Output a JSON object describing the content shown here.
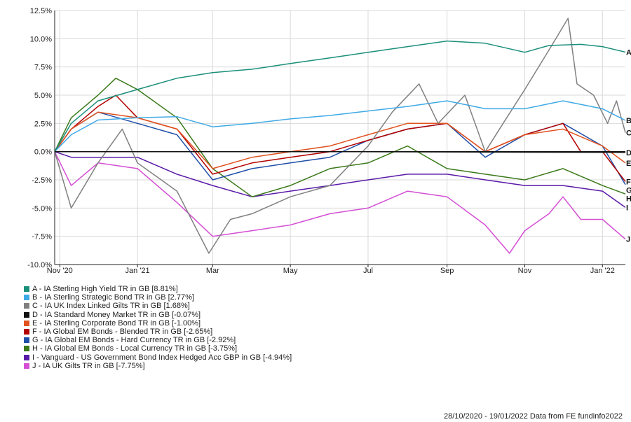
{
  "chart_data": {
    "type": "line",
    "x_range": [
      "2020-10-28",
      "2022-01-19"
    ],
    "ylim": [
      -10,
      12.5
    ],
    "y_ticks": [
      -10,
      -7.5,
      -5,
      -2.5,
      0,
      2.5,
      5,
      7.5,
      10,
      12.5
    ],
    "y_tick_labels": [
      "-10.0%",
      "-7.5%",
      "-5.0%",
      "-2.5%",
      "0.0%",
      "2.5%",
      "5.0%",
      "7.5%",
      "10.0%",
      "12.5%"
    ],
    "x_ticks": [
      "2020-11-01",
      "2021-01-01",
      "2021-03-01",
      "2021-05-01",
      "2021-07-01",
      "2021-09-01",
      "2021-11-01",
      "2022-01-01"
    ],
    "x_tick_labels": [
      "Nov '20",
      "Jan '21",
      "Mar",
      "May",
      "Jul",
      "Sep",
      "Nov",
      "Jan '22"
    ],
    "grid": true,
    "legend_position": "bottom-left",
    "footer": "28/10/2020 - 19/01/2022 Data from FE fundinfo2022",
    "series": [
      {
        "key": "A",
        "name": "A - IA Sterling High Yield TR in GB [8.81%]",
        "color": "#1a8f7a",
        "points": [
          [
            "2020-10-28",
            0
          ],
          [
            "2020-11-10",
            2.5
          ],
          [
            "2020-12-01",
            4.5
          ],
          [
            "2021-01-01",
            5.5
          ],
          [
            "2021-02-01",
            6.5
          ],
          [
            "2021-03-01",
            7.0
          ],
          [
            "2021-04-01",
            7.3
          ],
          [
            "2021-05-01",
            7.8
          ],
          [
            "2021-06-01",
            8.3
          ],
          [
            "2021-07-01",
            8.8
          ],
          [
            "2021-08-01",
            9.3
          ],
          [
            "2021-09-01",
            9.8
          ],
          [
            "2021-10-01",
            9.6
          ],
          [
            "2021-11-01",
            8.8
          ],
          [
            "2021-11-20",
            9.4
          ],
          [
            "2021-12-15",
            9.5
          ],
          [
            "2022-01-01",
            9.3
          ],
          [
            "2022-01-19",
            8.81
          ]
        ]
      },
      {
        "key": "B",
        "name": "B - IA Sterling Strategic Bond TR in GB [2.77%]",
        "color": "#3fa9e6",
        "points": [
          [
            "2020-10-28",
            0
          ],
          [
            "2020-11-10",
            1.5
          ],
          [
            "2020-12-01",
            2.8
          ],
          [
            "2021-01-01",
            3.0
          ],
          [
            "2021-02-01",
            3.1
          ],
          [
            "2021-03-01",
            2.2
          ],
          [
            "2021-04-01",
            2.5
          ],
          [
            "2021-05-01",
            2.9
          ],
          [
            "2021-06-01",
            3.2
          ],
          [
            "2021-07-01",
            3.6
          ],
          [
            "2021-08-01",
            4.0
          ],
          [
            "2021-09-01",
            4.5
          ],
          [
            "2021-10-01",
            3.8
          ],
          [
            "2021-11-01",
            3.8
          ],
          [
            "2021-12-01",
            4.5
          ],
          [
            "2022-01-01",
            3.8
          ],
          [
            "2022-01-19",
            2.77
          ]
        ]
      },
      {
        "key": "C",
        "name": "C - IA UK Index Linked Gilts TR in GB [1.68%]",
        "color": "#808080",
        "points": [
          [
            "2020-10-28",
            0
          ],
          [
            "2020-11-10",
            -5
          ],
          [
            "2020-12-01",
            -1
          ],
          [
            "2020-12-20",
            2
          ],
          [
            "2021-01-01",
            -1
          ],
          [
            "2021-02-01",
            -3.5
          ],
          [
            "2021-02-26",
            -9
          ],
          [
            "2021-03-15",
            -6
          ],
          [
            "2021-04-01",
            -5.5
          ],
          [
            "2021-05-01",
            -4
          ],
          [
            "2021-06-01",
            -3
          ],
          [
            "2021-07-01",
            0.5
          ],
          [
            "2021-07-20",
            3.5
          ],
          [
            "2021-08-10",
            6
          ],
          [
            "2021-08-25",
            2.5
          ],
          [
            "2021-09-15",
            5
          ],
          [
            "2021-10-01",
            0
          ],
          [
            "2021-10-15",
            2.5
          ],
          [
            "2021-11-01",
            5.5
          ],
          [
            "2021-11-20",
            9
          ],
          [
            "2021-12-05",
            11.8
          ],
          [
            "2021-12-12",
            6
          ],
          [
            "2021-12-25",
            5
          ],
          [
            "2022-01-05",
            2.5
          ],
          [
            "2022-01-12",
            4.5
          ],
          [
            "2022-01-19",
            1.68
          ]
        ]
      },
      {
        "key": "D",
        "name": "D - IA Standard Money Market TR in GB [-0.07%]",
        "color": "#111111",
        "points": [
          [
            "2020-10-28",
            0
          ],
          [
            "2021-06-01",
            0
          ],
          [
            "2022-01-19",
            -0.07
          ]
        ]
      },
      {
        "key": "E",
        "name": "E - IA Sterling Corporate Bond TR in GB [-1.00%]",
        "color": "#e0531f",
        "points": [
          [
            "2020-10-28",
            0
          ],
          [
            "2020-11-10",
            2
          ],
          [
            "2020-12-01",
            3.5
          ],
          [
            "2021-01-01",
            3.0
          ],
          [
            "2021-02-01",
            2.0
          ],
          [
            "2021-03-01",
            -1.5
          ],
          [
            "2021-04-01",
            -0.5
          ],
          [
            "2021-05-01",
            0
          ],
          [
            "2021-06-01",
            0.5
          ],
          [
            "2021-07-01",
            1.5
          ],
          [
            "2021-08-01",
            2.5
          ],
          [
            "2021-09-01",
            2.5
          ],
          [
            "2021-10-01",
            0
          ],
          [
            "2021-11-01",
            1.5
          ],
          [
            "2021-12-01",
            2.0
          ],
          [
            "2022-01-01",
            0.5
          ],
          [
            "2022-01-19",
            -1.0
          ]
        ]
      },
      {
        "key": "F",
        "name": "F - IA Global EM Bonds - Blended TR in GB [-2.65%]",
        "color": "#b30000",
        "points": [
          [
            "2020-10-28",
            0
          ],
          [
            "2020-11-10",
            2
          ],
          [
            "2020-12-01",
            4
          ],
          [
            "2020-12-15",
            5
          ],
          [
            "2021-01-01",
            3
          ],
          [
            "2021-02-01",
            2
          ],
          [
            "2021-03-01",
            -2
          ],
          [
            "2021-04-01",
            -1
          ],
          [
            "2021-05-01",
            -0.5
          ],
          [
            "2021-06-01",
            0
          ],
          [
            "2021-07-01",
            1
          ],
          [
            "2021-08-01",
            2
          ],
          [
            "2021-09-01",
            2.5
          ],
          [
            "2021-10-01",
            0
          ],
          [
            "2021-11-01",
            1.5
          ],
          [
            "2021-12-01",
            2.5
          ],
          [
            "2021-12-15",
            0
          ],
          [
            "2022-01-01",
            0
          ],
          [
            "2022-01-19",
            -2.65
          ]
        ]
      },
      {
        "key": "G",
        "name": "G - IA Global EM Bonds - Hard Currency TR in GB [-2.92%]",
        "color": "#1f4fa8",
        "points": [
          [
            "2020-10-28",
            0
          ],
          [
            "2020-11-10",
            2
          ],
          [
            "2020-12-01",
            3.5
          ],
          [
            "2021-01-01",
            2.5
          ],
          [
            "2021-02-01",
            1.5
          ],
          [
            "2021-03-01",
            -2.5
          ],
          [
            "2021-04-01",
            -1.5
          ],
          [
            "2021-05-01",
            -1
          ],
          [
            "2021-06-01",
            -0.5
          ],
          [
            "2021-07-01",
            1
          ],
          [
            "2021-08-01",
            2
          ],
          [
            "2021-09-01",
            2.5
          ],
          [
            "2021-10-01",
            -0.5
          ],
          [
            "2021-11-01",
            1.5
          ],
          [
            "2021-12-01",
            2.5
          ],
          [
            "2022-01-01",
            0.5
          ],
          [
            "2022-01-19",
            -2.92
          ]
        ]
      },
      {
        "key": "H",
        "name": "H - IA Global EM Bonds - Local Currency TR in GB [-3.75%]",
        "color": "#3b7a1a",
        "points": [
          [
            "2020-10-28",
            0
          ],
          [
            "2020-11-10",
            3
          ],
          [
            "2020-12-01",
            5
          ],
          [
            "2020-12-15",
            6.5
          ],
          [
            "2021-01-01",
            5.5
          ],
          [
            "2021-02-01",
            3
          ],
          [
            "2021-03-01",
            -1.5
          ],
          [
            "2021-04-01",
            -4
          ],
          [
            "2021-05-01",
            -3
          ],
          [
            "2021-06-01",
            -1.5
          ],
          [
            "2021-07-01",
            -1
          ],
          [
            "2021-08-01",
            0.5
          ],
          [
            "2021-09-01",
            -1.5
          ],
          [
            "2021-10-01",
            -2
          ],
          [
            "2021-11-01",
            -2.5
          ],
          [
            "2021-12-01",
            -1.5
          ],
          [
            "2022-01-01",
            -3
          ],
          [
            "2022-01-19",
            -3.75
          ]
        ]
      },
      {
        "key": "I",
        "name": "I - Vanguard - US Government Bond Index Hedged Acc GBP in GB [-4.94%]",
        "color": "#5a1aa8",
        "points": [
          [
            "2020-10-28",
            0
          ],
          [
            "2020-11-10",
            -0.5
          ],
          [
            "2020-12-01",
            -0.5
          ],
          [
            "2021-01-01",
            -0.5
          ],
          [
            "2021-02-01",
            -2
          ],
          [
            "2021-03-01",
            -3
          ],
          [
            "2021-04-01",
            -4
          ],
          [
            "2021-05-01",
            -3.5
          ],
          [
            "2021-06-01",
            -3
          ],
          [
            "2021-07-01",
            -2.5
          ],
          [
            "2021-08-01",
            -2
          ],
          [
            "2021-09-01",
            -2
          ],
          [
            "2021-10-01",
            -2.5
          ],
          [
            "2021-11-01",
            -3
          ],
          [
            "2021-12-01",
            -3
          ],
          [
            "2022-01-01",
            -3.5
          ],
          [
            "2022-01-19",
            -4.94
          ]
        ]
      },
      {
        "key": "J",
        "name": "J - IA UK Gilts TR in GB [-7.75%]",
        "color": "#d44fd4",
        "points": [
          [
            "2020-10-28",
            0
          ],
          [
            "2020-11-10",
            -3
          ],
          [
            "2020-12-01",
            -1
          ],
          [
            "2021-01-01",
            -1.5
          ],
          [
            "2021-02-01",
            -4.5
          ],
          [
            "2021-03-01",
            -7.5
          ],
          [
            "2021-04-01",
            -7
          ],
          [
            "2021-05-01",
            -6.5
          ],
          [
            "2021-06-01",
            -5.5
          ],
          [
            "2021-07-01",
            -5
          ],
          [
            "2021-08-01",
            -3.5
          ],
          [
            "2021-09-01",
            -4
          ],
          [
            "2021-10-01",
            -6.5
          ],
          [
            "2021-10-20",
            -9
          ],
          [
            "2021-11-01",
            -7
          ],
          [
            "2021-11-20",
            -5.5
          ],
          [
            "2021-12-01",
            -4
          ],
          [
            "2021-12-15",
            -6
          ],
          [
            "2022-01-01",
            -6
          ],
          [
            "2022-01-19",
            -7.75
          ]
        ]
      }
    ]
  }
}
